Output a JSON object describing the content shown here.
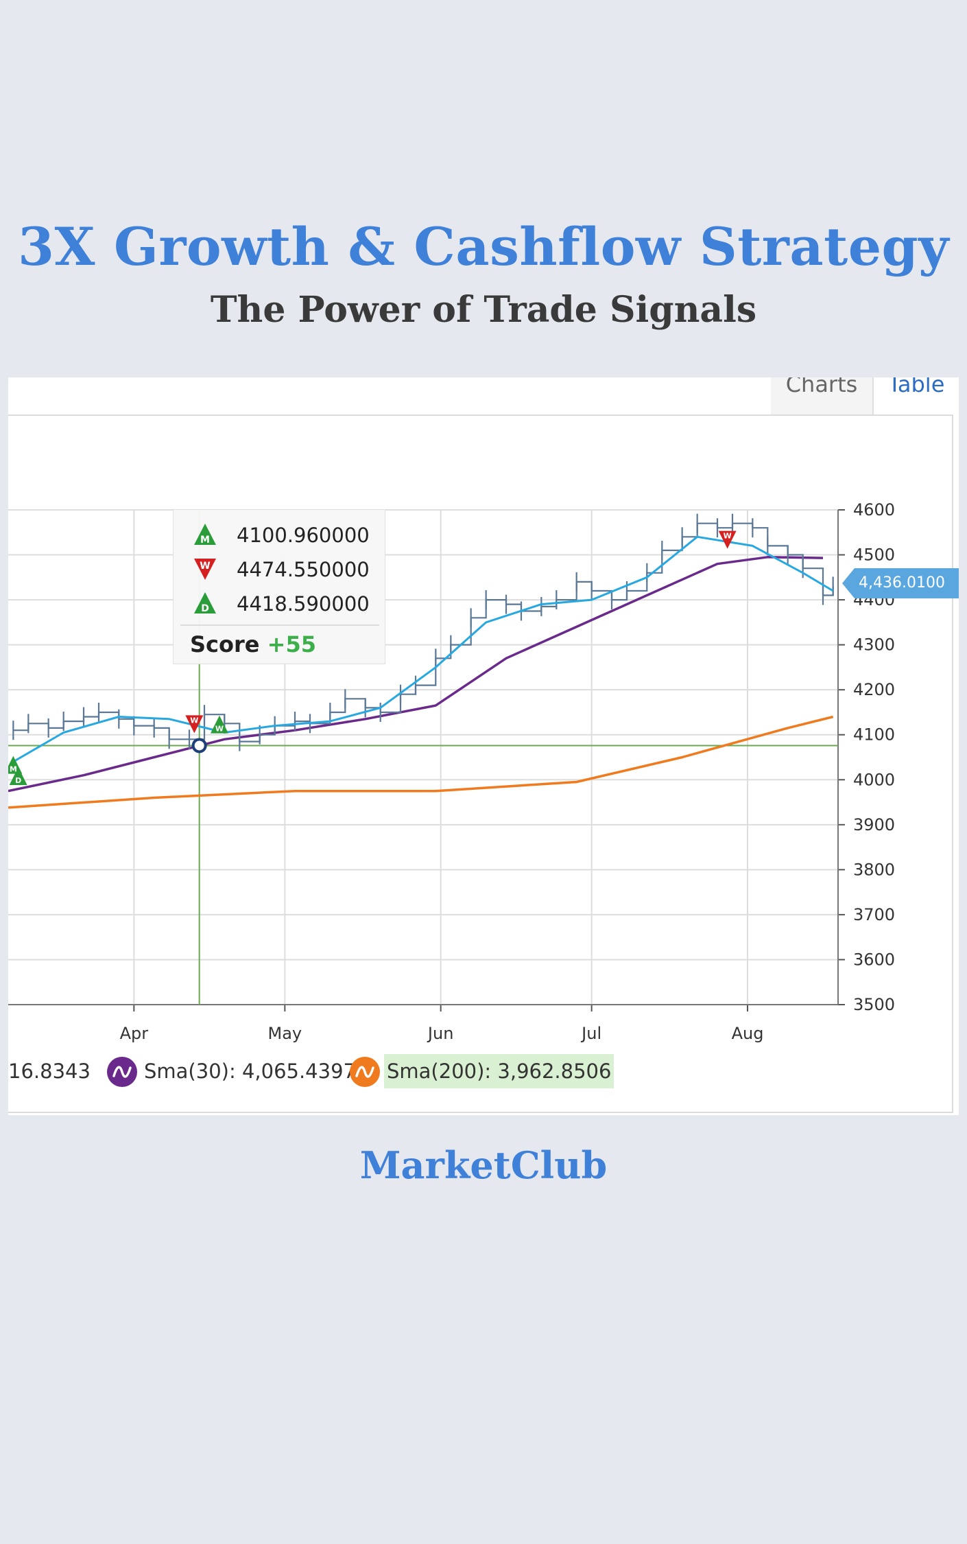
{
  "header": {
    "title": "3X Growth & Cashflow Strategy",
    "subtitle": "The Power of Trade Signals"
  },
  "tabs": [
    {
      "label": "Charts",
      "active": true
    },
    {
      "label": "Table",
      "active": false
    }
  ],
  "tooltip": {
    "signals": [
      {
        "icon": "monthly-buy-signal-icon",
        "letter": "M",
        "direction": "up",
        "color": "#2a9d3a",
        "value": "4100.960000"
      },
      {
        "icon": "weekly-sell-signal-icon",
        "letter": "W",
        "direction": "down",
        "color": "#d42020",
        "value": "4474.550000"
      },
      {
        "icon": "daily-buy-signal-icon",
        "letter": "D",
        "direction": "up",
        "color": "#2a9d3a",
        "value": "4418.590000"
      }
    ],
    "score_label": "Score",
    "score_value": "+55"
  },
  "price_tag": "4,436.0100",
  "legend": {
    "truncated_value": "16.8343",
    "sma30": {
      "text": "Sma(30): 4,065.4397",
      "color": "#6a2a8c"
    },
    "sma200": {
      "text": "Sma(200): 3,962.8506",
      "color": "#f07a1e"
    }
  },
  "brand": "MarketClub",
  "colors": {
    "price": "#5a7896",
    "sma_short": "#28a8e0",
    "sma30": "#6a2a8c",
    "sma200": "#f07a1e",
    "crosshair": "#6aaa50",
    "grid": "#dddddd"
  },
  "chart_data": {
    "type": "line",
    "x_ticks": [
      "Apr",
      "May",
      "Jun",
      "Jul",
      "Aug"
    ],
    "y_ticks": [
      3500,
      3600,
      3700,
      3800,
      3900,
      4000,
      4100,
      4200,
      4300,
      4400,
      4500,
      4600
    ],
    "ylim": [
      3500,
      4600
    ],
    "xlim": [
      "2023-03-07",
      "2023-08-19"
    ],
    "grid": true,
    "crosshair": {
      "date": "2023-04-14",
      "value": 4076
    },
    "series": [
      {
        "name": "",
        "kind": "ohlc-bars",
        "x": [
          "2023-03-08",
          "2023-03-11",
          "2023-03-15",
          "2023-03-18",
          "2023-03-22",
          "2023-03-25",
          "2023-03-29",
          "2023-04-01",
          "2023-04-05",
          "2023-04-08",
          "2023-04-12",
          "2023-04-15",
          "2023-04-19",
          "2023-04-22",
          "2023-04-26",
          "2023-04-29",
          "2023-05-03",
          "2023-05-06",
          "2023-05-10",
          "2023-05-13",
          "2023-05-17",
          "2023-05-20",
          "2023-05-24",
          "2023-05-27",
          "2023-05-31",
          "2023-06-03",
          "2023-06-07",
          "2023-06-10",
          "2023-06-14",
          "2023-06-17",
          "2023-06-21",
          "2023-06-24",
          "2023-06-28",
          "2023-07-01",
          "2023-07-05",
          "2023-07-08",
          "2023-07-12",
          "2023-07-15",
          "2023-07-19",
          "2023-07-22",
          "2023-07-26",
          "2023-07-29",
          "2023-08-02",
          "2023-08-05",
          "2023-08-09",
          "2023-08-12",
          "2023-08-16",
          "2023-08-18"
        ],
        "values": [
          4110,
          4125,
          4115,
          4130,
          4140,
          4150,
          4135,
          4120,
          4115,
          4090,
          4090,
          4145,
          4125,
          4085,
          4100,
          4120,
          4130,
          4125,
          4150,
          4180,
          4160,
          4150,
          4190,
          4210,
          4270,
          4300,
          4360,
          4400,
          4390,
          4375,
          4385,
          4400,
          4440,
          4420,
          4400,
          4420,
          4460,
          4510,
          4540,
          4570,
          4560,
          4570,
          4560,
          4520,
          4500,
          4470,
          4410,
          4430
        ]
      },
      {
        "name": "",
        "kind": "sma-short",
        "x": [
          "2023-03-08",
          "2023-03-18",
          "2023-03-29",
          "2023-04-08",
          "2023-04-19",
          "2023-04-29",
          "2023-05-10",
          "2023-05-20",
          "2023-05-31",
          "2023-06-10",
          "2023-06-21",
          "2023-07-01",
          "2023-07-12",
          "2023-07-22",
          "2023-08-02",
          "2023-08-12",
          "2023-08-18"
        ],
        "values": [
          4040,
          4105,
          4140,
          4135,
          4105,
          4120,
          4130,
          4160,
          4250,
          4350,
          4390,
          4400,
          4450,
          4540,
          4520,
          4460,
          4420
        ]
      },
      {
        "name": "Sma(30)",
        "kind": "sma30",
        "x": [
          "2023-03-07",
          "2023-03-22",
          "2023-04-05",
          "2023-04-19",
          "2023-05-03",
          "2023-05-17",
          "2023-05-31",
          "2023-06-14",
          "2023-06-28",
          "2023-07-12",
          "2023-07-26",
          "2023-08-05",
          "2023-08-16"
        ],
        "values": [
          3975,
          4010,
          4050,
          4090,
          4110,
          4135,
          4165,
          4270,
          4340,
          4410,
          4480,
          4495,
          4493
        ]
      },
      {
        "name": "Sma(200)",
        "kind": "sma200",
        "x": [
          "2023-03-07",
          "2023-04-05",
          "2023-05-03",
          "2023-05-31",
          "2023-06-28",
          "2023-07-19",
          "2023-08-09",
          "2023-08-18"
        ],
        "values": [
          3938,
          3960,
          3975,
          3975,
          3995,
          4050,
          4115,
          4140
        ]
      }
    ],
    "signals": [
      {
        "date": "2023-03-08",
        "value": 4030,
        "letter": "M",
        "type": "buy"
      },
      {
        "date": "2023-03-09",
        "value": 4005,
        "letter": "D",
        "type": "buy"
      },
      {
        "date": "2023-04-13",
        "value": 4125,
        "letter": "W",
        "type": "sell"
      },
      {
        "date": "2023-04-18",
        "value": 4120,
        "letter": "W",
        "type": "buy"
      },
      {
        "date": "2023-07-28",
        "value": 4535,
        "letter": "W",
        "type": "sell"
      }
    ]
  }
}
